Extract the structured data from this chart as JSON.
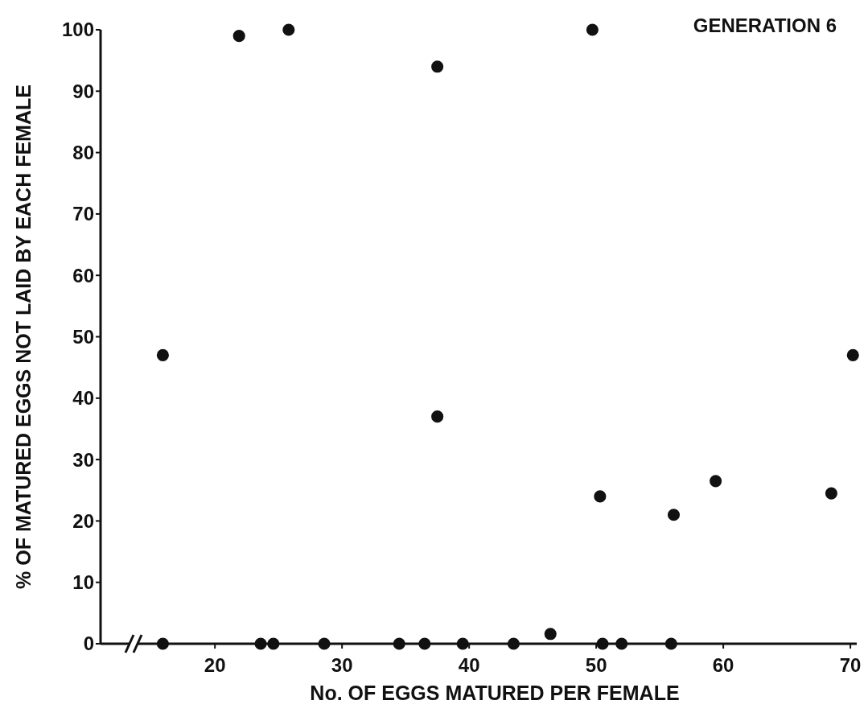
{
  "chart_data": {
    "type": "scatter",
    "title": "GENERATION 6",
    "xlabel": "No. OF EGGS MATURED PER FEMALE",
    "ylabel": "% OF MATURED EGGS NOT LAID BY EACH FEMALE",
    "xlim": [
      11,
      70.5
    ],
    "xticks": [
      20,
      30,
      40,
      50,
      60,
      70
    ],
    "ylim": [
      0,
      100
    ],
    "yticks": [
      0,
      10,
      20,
      30,
      40,
      50,
      60,
      70,
      80,
      90,
      100
    ],
    "grid": false,
    "marker": "circle",
    "series": [
      {
        "color": "#111111",
        "x": [
          15.9,
          21.9,
          25.8,
          37.5,
          49.7,
          37.5,
          70.2,
          50.3,
          59.4,
          56.1,
          68.5,
          15.9,
          23.6,
          24.6,
          28.6,
          34.5,
          36.5,
          39.5,
          43.5,
          46.4,
          50.5,
          52,
          55.9
        ],
        "values": [
          47,
          99,
          100,
          94,
          100,
          37,
          47,
          24,
          26.5,
          21,
          24.5,
          0,
          0,
          0,
          0,
          0,
          0,
          0,
          0,
          1.6,
          0,
          0,
          0
        ]
      }
    ]
  }
}
